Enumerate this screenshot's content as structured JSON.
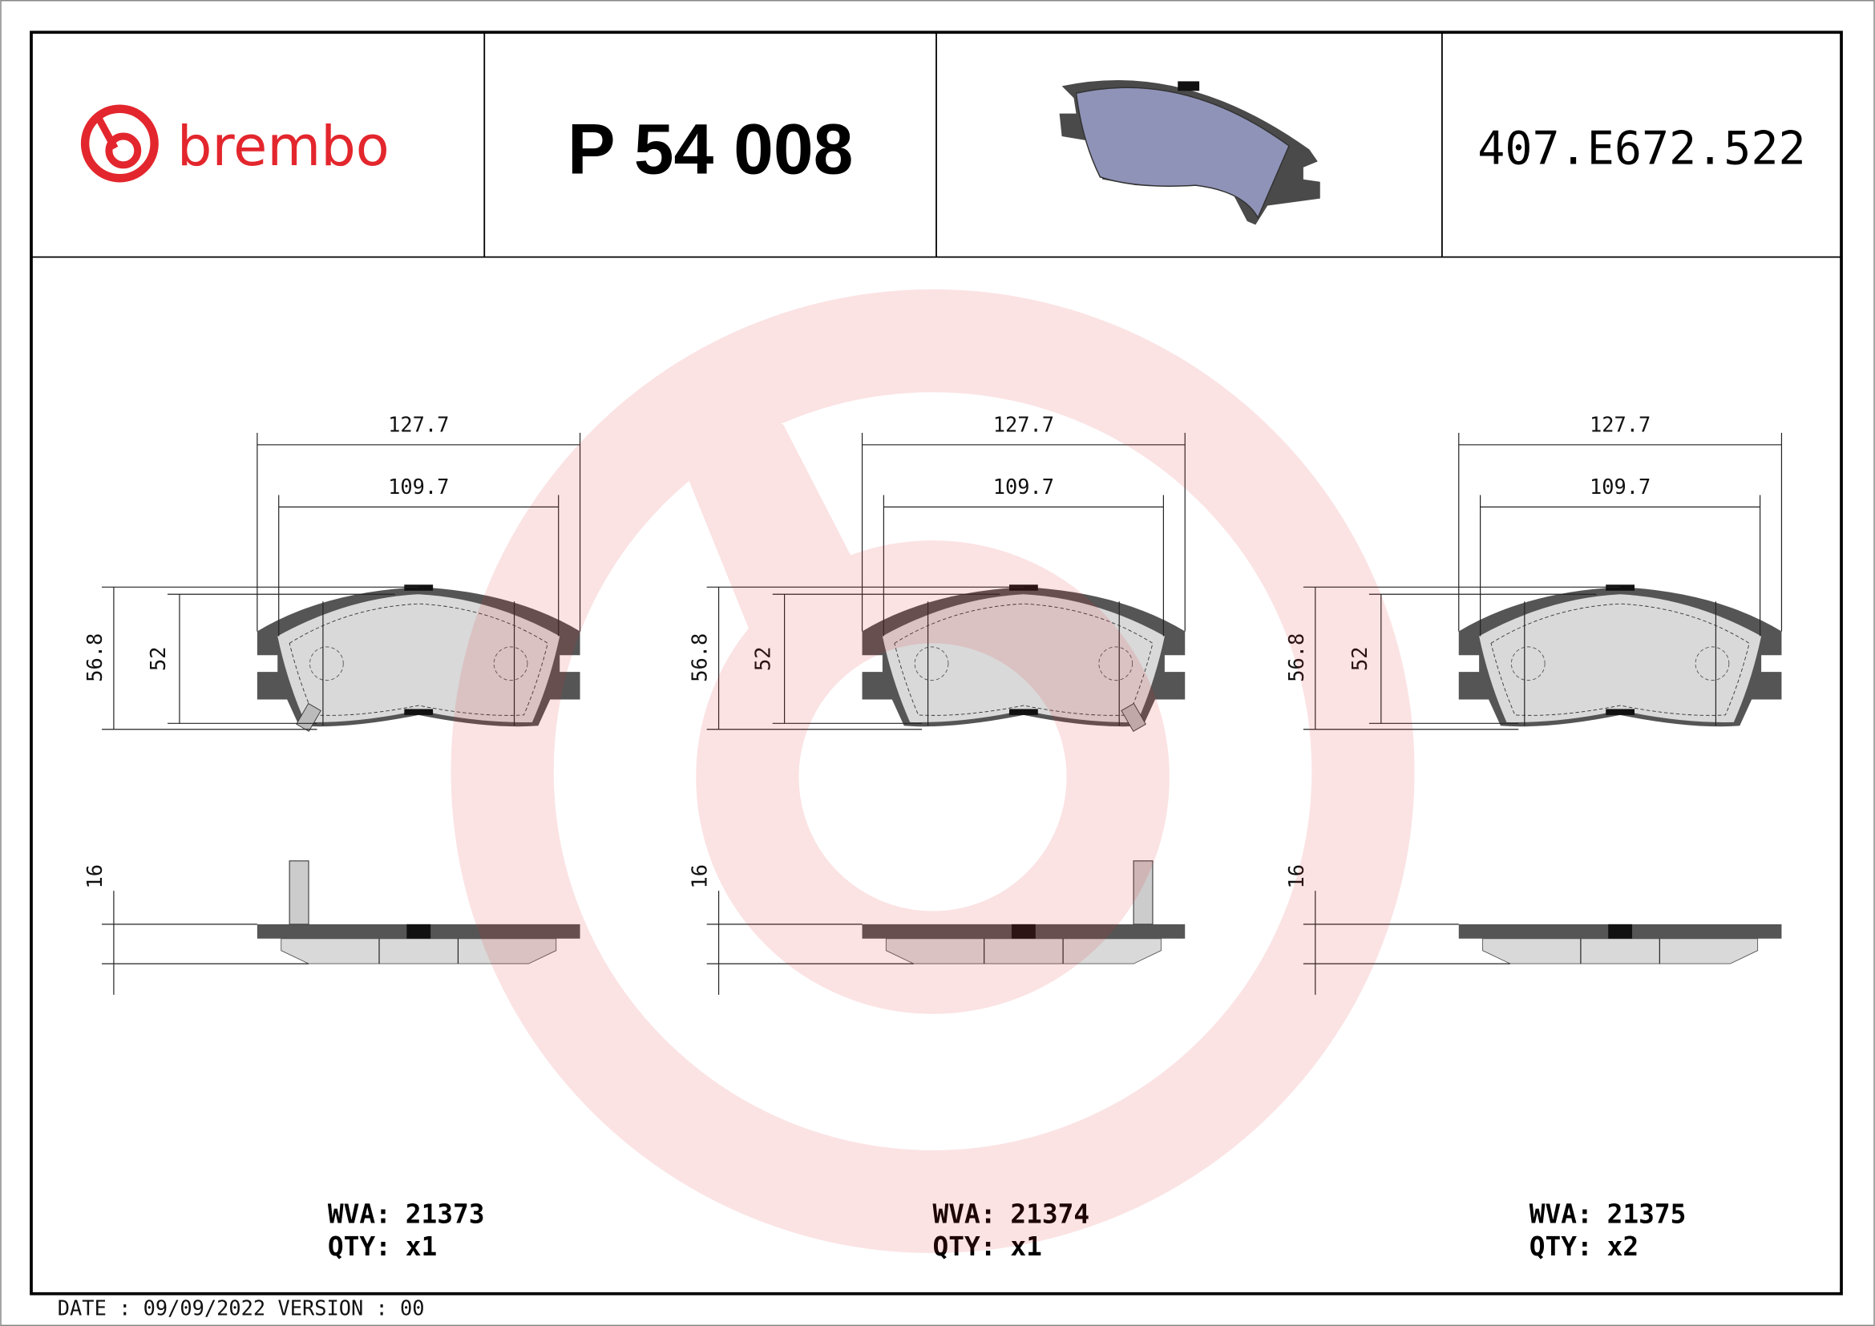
{
  "header": {
    "brand": "brembo",
    "part_number": "P 54 008",
    "reference_code": "407.E672.522",
    "brand_color": "#e3262d",
    "product_image_icon": "brake-pad-3d-icon"
  },
  "views": [
    {
      "width_outer": "127.7",
      "width_inner": "109.7",
      "height_outer": "56.8",
      "height_inner": "52",
      "thickness": "16",
      "wva_label": "WVA:",
      "wva": "21373",
      "qty_label": "QTY:",
      "qty": "x1",
      "wear_sensor": "left"
    },
    {
      "width_outer": "127.7",
      "width_inner": "109.7",
      "height_outer": "56.8",
      "height_inner": "52",
      "thickness": "16",
      "wva_label": "WVA:",
      "wva": "21374",
      "qty_label": "QTY:",
      "qty": "x1",
      "wear_sensor": "right"
    },
    {
      "width_outer": "127.7",
      "width_inner": "109.7",
      "height_outer": "56.8",
      "height_inner": "52",
      "thickness": "16",
      "wva_label": "WVA:",
      "wva": "21375",
      "qty_label": "QTY:",
      "qty": "x2",
      "wear_sensor": "none"
    }
  ],
  "footer": {
    "text": "DATE : 09/09/2022 VERSION : 00"
  }
}
